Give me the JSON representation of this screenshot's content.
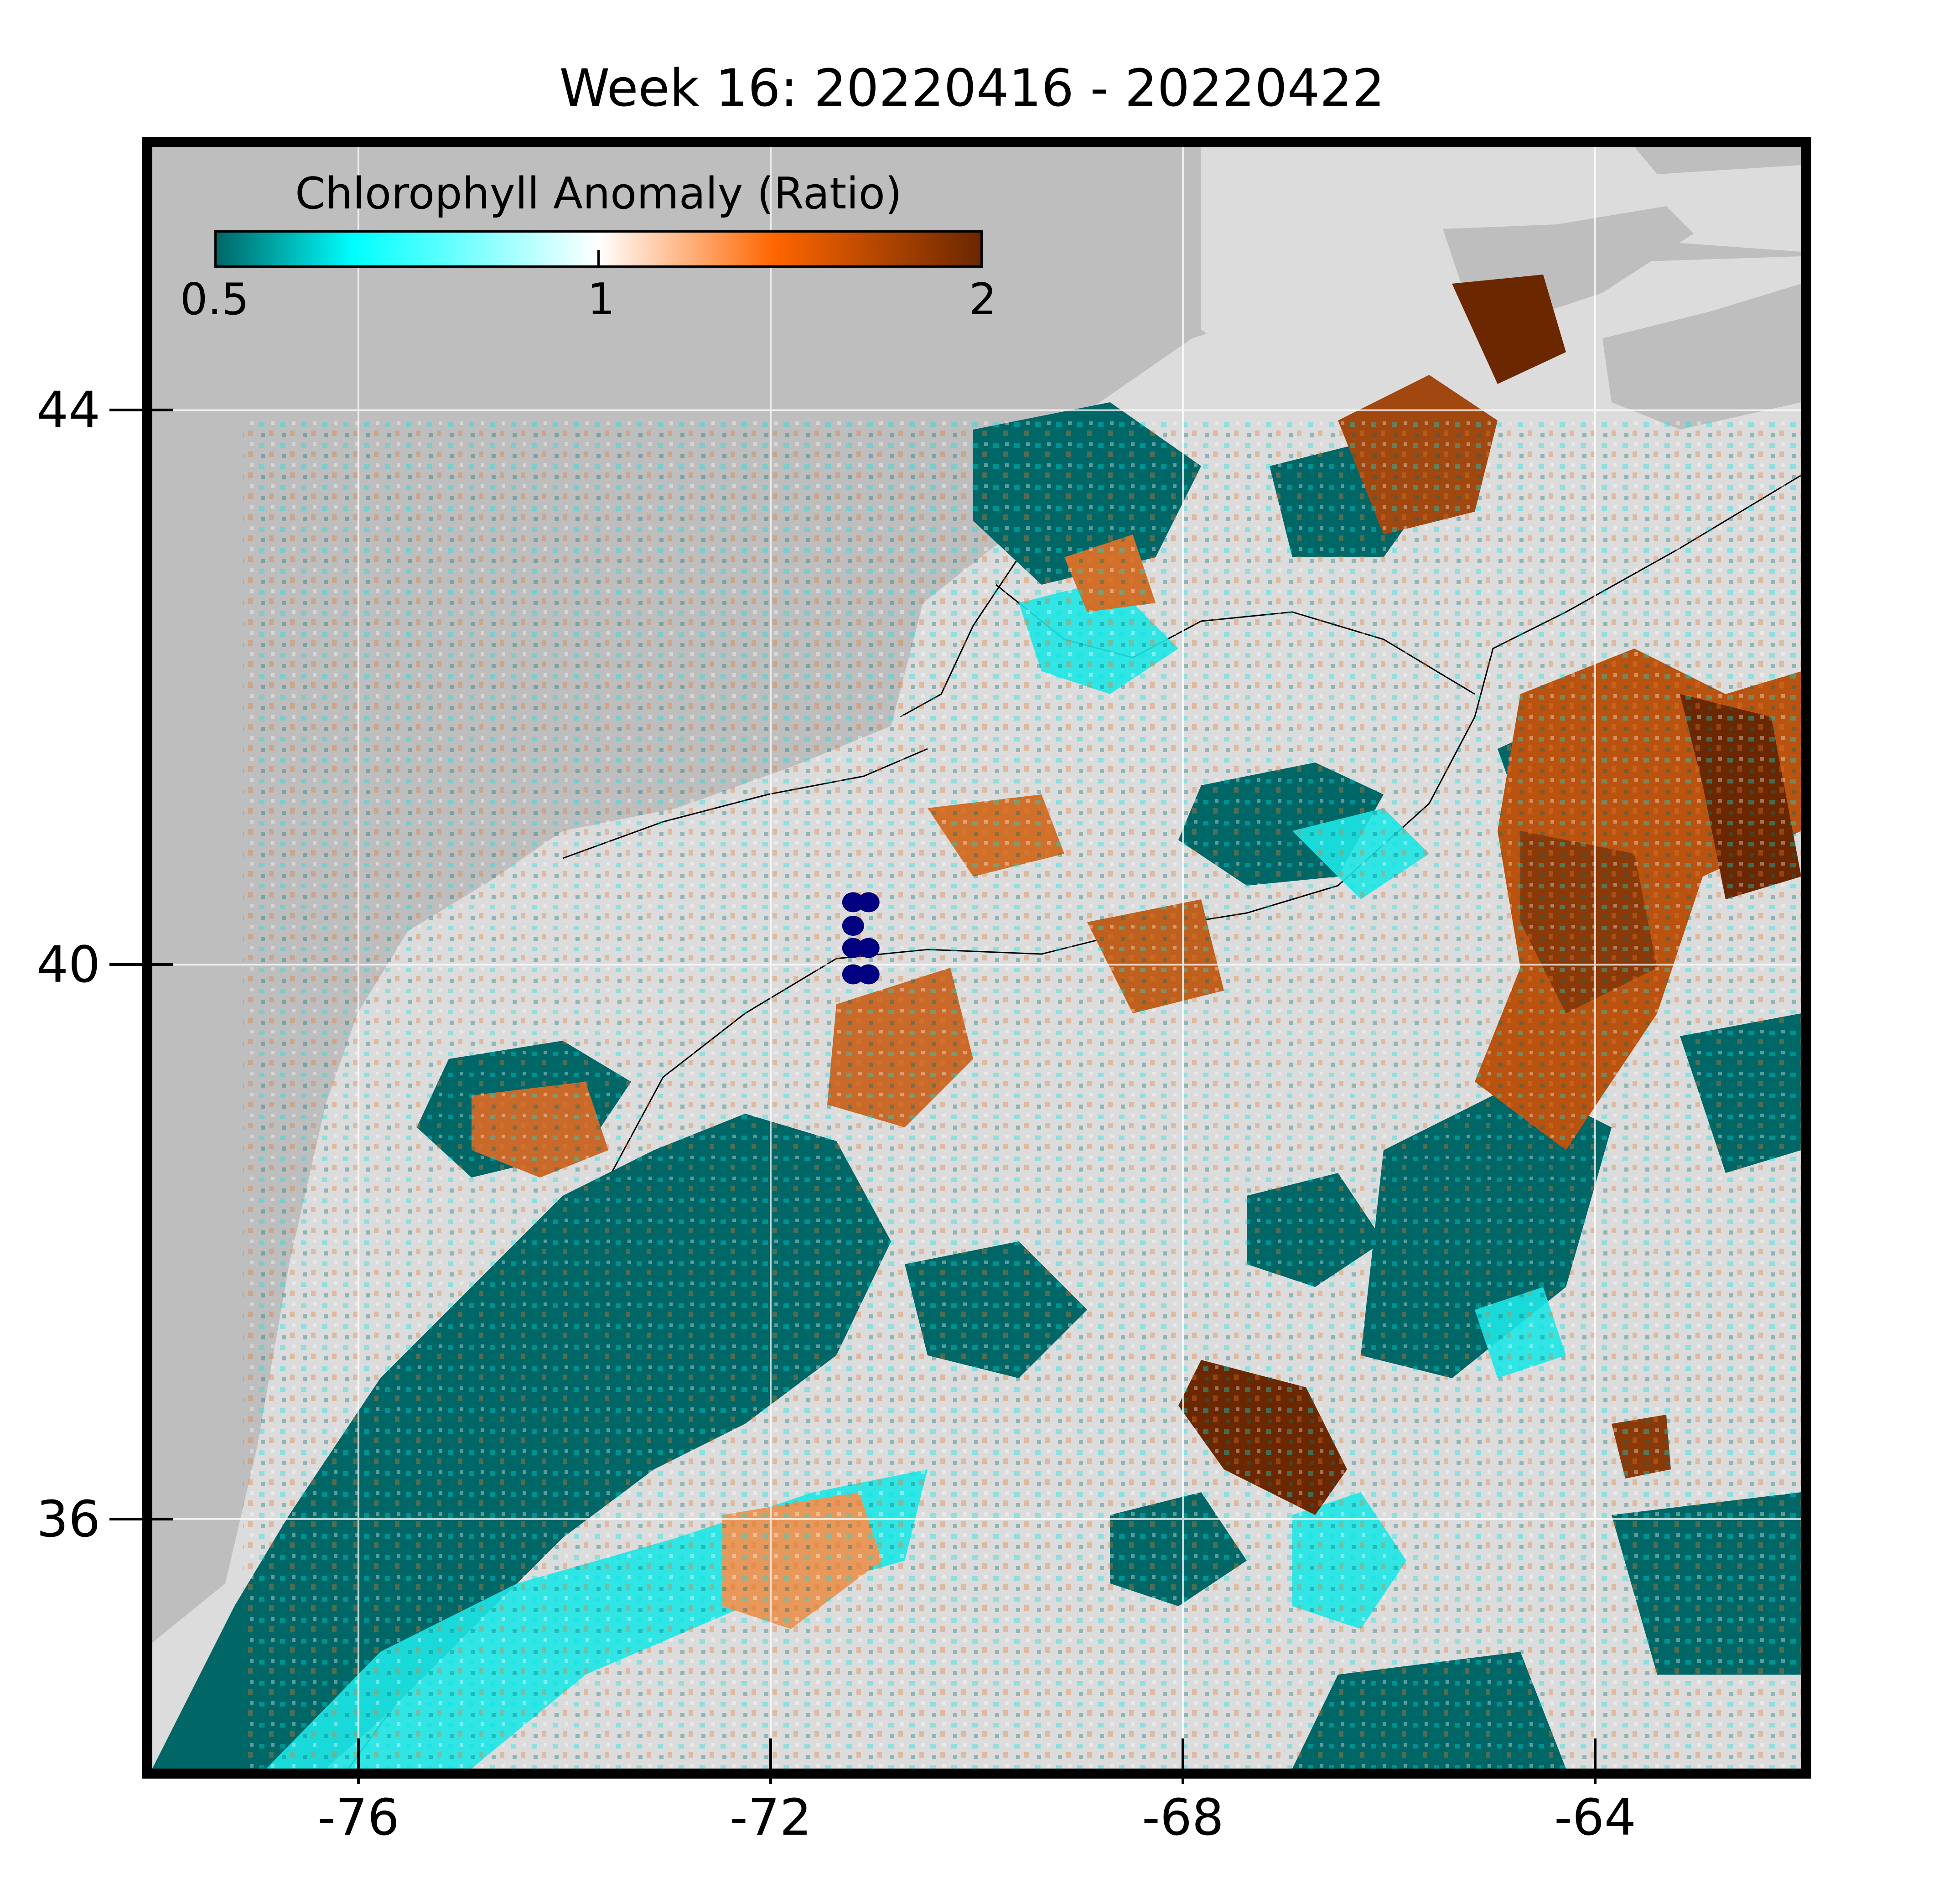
{
  "title": "Week 16: 20220416 - 20220422",
  "colorbar": {
    "label": "Chlorophyll Anomaly (Ratio)",
    "ticks": [
      "0.5",
      "1",
      "2"
    ],
    "min": 0.5,
    "mid": 1,
    "max": 2,
    "colors": [
      "#006666",
      "#00ffff",
      "#ffffff",
      "#ff6600",
      "#6b2700"
    ]
  },
  "map": {
    "lon_range": [
      -78,
      -62
    ],
    "lat_range": [
      34.2,
      45.9
    ],
    "x_ticks": [
      -76,
      -72,
      -68,
      -64
    ],
    "x_tick_labels": [
      "-76",
      "-72",
      "-68",
      "-64"
    ],
    "y_ticks": [
      36,
      40,
      44
    ],
    "y_tick_labels": [
      "36",
      "40",
      "44"
    ],
    "land_color": "#bebebe",
    "no_data_color": "#dcdcdc",
    "gridlines": true,
    "station_color": "#000080",
    "stations": [
      {
        "lon": -71.2,
        "lat": 40.45
      },
      {
        "lon": -71.05,
        "lat": 40.45
      },
      {
        "lon": -71.2,
        "lat": 40.28
      },
      {
        "lon": -71.2,
        "lat": 40.12
      },
      {
        "lon": -71.05,
        "lat": 40.12
      },
      {
        "lon": -71.2,
        "lat": 39.93
      },
      {
        "lon": -71.05,
        "lat": 39.93
      }
    ]
  }
}
